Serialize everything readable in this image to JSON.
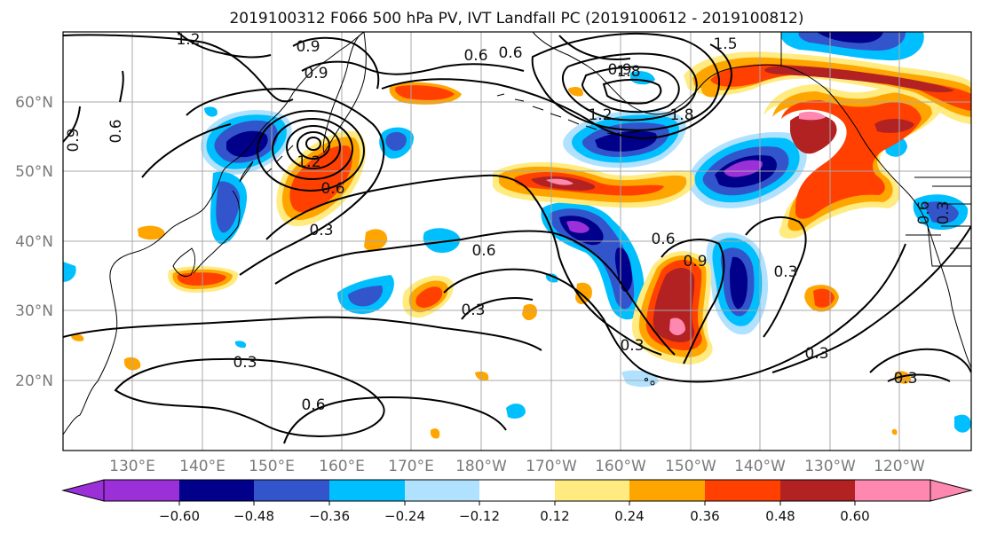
{
  "title": "2019100312 F066 500 hPa PV, IVT Landfall PC (2019100612 - 2019100812)",
  "lat_labels": [
    "60°N",
    "50°N",
    "40°N",
    "30°N",
    "20°N"
  ],
  "lon_labels": [
    "130°E",
    "140°E",
    "150°E",
    "160°E",
    "170°E",
    "180°W",
    "170°W",
    "160°W",
    "150°W",
    "140°W",
    "130°W",
    "120°W"
  ],
  "contour_labels": [
    "1.2",
    "0.9",
    "0.6",
    "0.9",
    "0.6",
    "1.5",
    "0.9",
    "1.8",
    "1.2",
    "1.8",
    "1.2",
    "0.6",
    "0.3",
    "0.6",
    "0.3",
    "0.6",
    "0.9",
    "0.3",
    "0.3",
    "0.3",
    "0.3",
    "0.6",
    "0.3",
    "0.6",
    "0.9",
    "0.6",
    "0.3"
  ],
  "colorbar": {
    "tick_labels": [
      "−0.60",
      "−0.48",
      "−0.36",
      "−0.24",
      "−0.12",
      "0.12",
      "0.24",
      "0.36",
      "0.48",
      "0.60"
    ],
    "colors": [
      "#9b30d9",
      "#00008b",
      "#3355cc",
      "#00bfff",
      "#b0e2ff",
      "#ffffff",
      "#ffeb80",
      "#ffa500",
      "#ff4000",
      "#b22222",
      "#ff88b0"
    ]
  },
  "fill_colors": {
    "neg_strong": "#00008b",
    "neg_mid": "#3355cc",
    "neg_light": "#00bfff",
    "neg_faint": "#b0e2ff",
    "neg_max": "#9b30d9",
    "pos_faint": "#ffeb80",
    "pos_light": "#ffa500",
    "pos_mid": "#ff4000",
    "pos_strong": "#b22222",
    "pos_max": "#ff88b0"
  }
}
